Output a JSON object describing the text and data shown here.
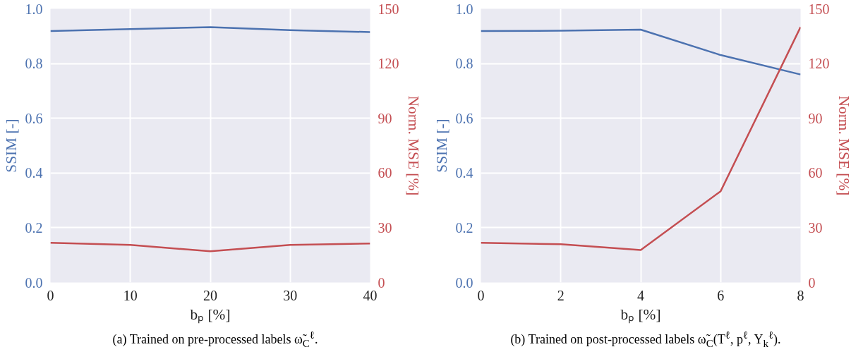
{
  "chart_data": [
    {
      "type": "line",
      "x": [
        0,
        10,
        20,
        30,
        40
      ],
      "xlim": [
        0,
        40
      ],
      "xticks": [
        0,
        10,
        20,
        30,
        40
      ],
      "ylim": [
        0,
        1
      ],
      "yticks": [
        {
          "value": 0,
          "label": "0.0"
        },
        {
          "value": 0.2,
          "label": "0.2"
        },
        {
          "value": 0.4,
          "label": "0.4"
        },
        {
          "value": 0.6,
          "label": "0.6"
        },
        {
          "value": 0.8,
          "label": "0.8"
        },
        {
          "value": 1,
          "label": "1.0"
        }
      ],
      "y2lim": [
        0,
        150
      ],
      "y2ticks": [
        0,
        30,
        60,
        90,
        120,
        150
      ],
      "xlabel": "bₚ [%]",
      "ylabel": "SSIM [-]",
      "y2label": "Norm. MSE [%]",
      "grid": true,
      "series": [
        {
          "color": "#4c72b0",
          "values": [
            0.919,
            0.926,
            0.933,
            0.922,
            0.915
          ]
        },
        {
          "color": "#c44e52",
          "axis": "y2",
          "values": [
            21.7,
            20.6,
            17.1,
            20.6,
            21.4
          ]
        }
      ],
      "annotations": [
        "(a) Trained on pre-processed labels ω̃$_{C}$$^{ℓ}$."
      ]
    },
    {
      "type": "line",
      "x": [
        0,
        2,
        4,
        6,
        8
      ],
      "xlim": [
        0,
        8
      ],
      "xticks": [
        0,
        2,
        4,
        6,
        8
      ],
      "ylim": [
        0,
        1
      ],
      "yticks": [
        {
          "value": 0,
          "label": "0.0"
        },
        {
          "value": 0.2,
          "label": "0.2"
        },
        {
          "value": 0.4,
          "label": "0.4"
        },
        {
          "value": 0.6,
          "label": "0.6"
        },
        {
          "value": 0.8,
          "label": "0.8"
        },
        {
          "value": 1,
          "label": "1.0"
        }
      ],
      "y2lim": [
        0,
        150
      ],
      "y2ticks": [
        0,
        30,
        60,
        90,
        120,
        150
      ],
      "xlabel": "bₚ [%]",
      "ylabel": "SSIM [-]",
      "y2label": "Norm. MSE [%]",
      "grid": true,
      "series": [
        {
          "color": "#4c72b0",
          "values": [
            0.919,
            0.92,
            0.924,
            0.831,
            0.76
          ]
        },
        {
          "color": "#c44e52",
          "axis": "y2",
          "values": [
            21.7,
            21.0,
            17.8,
            50.0,
            140.0
          ]
        }
      ],
      "annotations": [
        "(b) Trained on post-processed labels ω̃$_{C}$(T$^{ℓ}$, p$^{ℓ}$, Y$_{k}$$^{ℓ}$)."
      ]
    }
  ]
}
